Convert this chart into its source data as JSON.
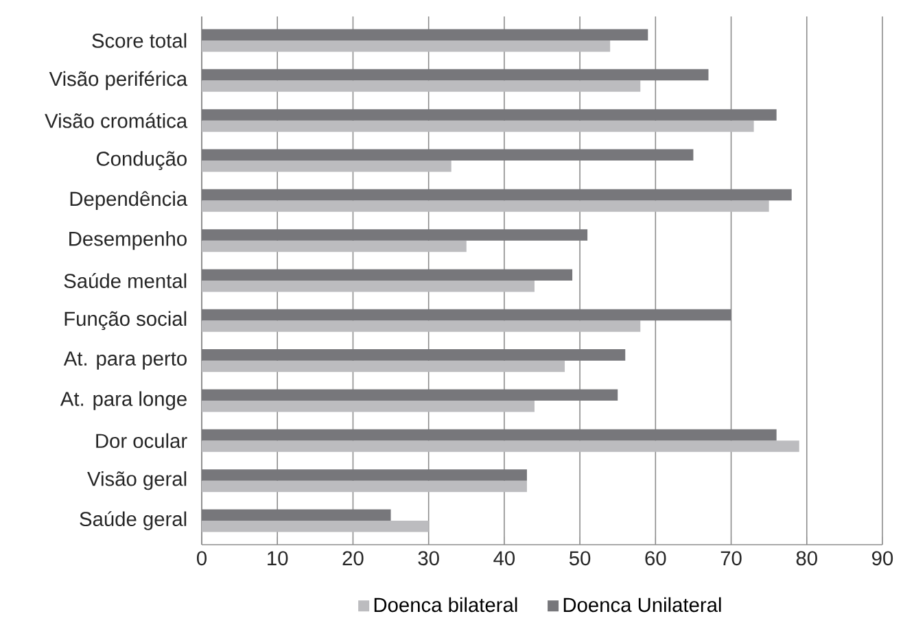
{
  "chart_data": {
    "type": "bar",
    "orientation": "horizontal",
    "categories": [
      "Score total",
      "Visão periférica",
      "Visão cromática",
      "Condução",
      "Dependência",
      "Desempenho",
      "Saúde mental",
      "Função social",
      "At. para perto",
      "At. para longe",
      "Dor ocular",
      "Visão geral",
      "Saúde geral"
    ],
    "series": [
      {
        "name": "Doenca bilateral",
        "color": "#bcbcbf",
        "values": [
          54,
          58,
          73,
          33,
          75,
          35,
          44,
          58,
          48,
          44,
          79,
          43,
          30
        ]
      },
      {
        "name": "Doenca Unilateral",
        "color": "#77777b",
        "values": [
          59,
          67,
          76,
          65,
          78,
          51,
          49,
          70,
          56,
          55,
          76,
          43,
          25
        ]
      }
    ],
    "xlim": [
      0,
      90
    ],
    "xticks": [
      0,
      10,
      20,
      30,
      40,
      50,
      60,
      70,
      80,
      90
    ],
    "grid": "x",
    "legend": "bottom"
  }
}
